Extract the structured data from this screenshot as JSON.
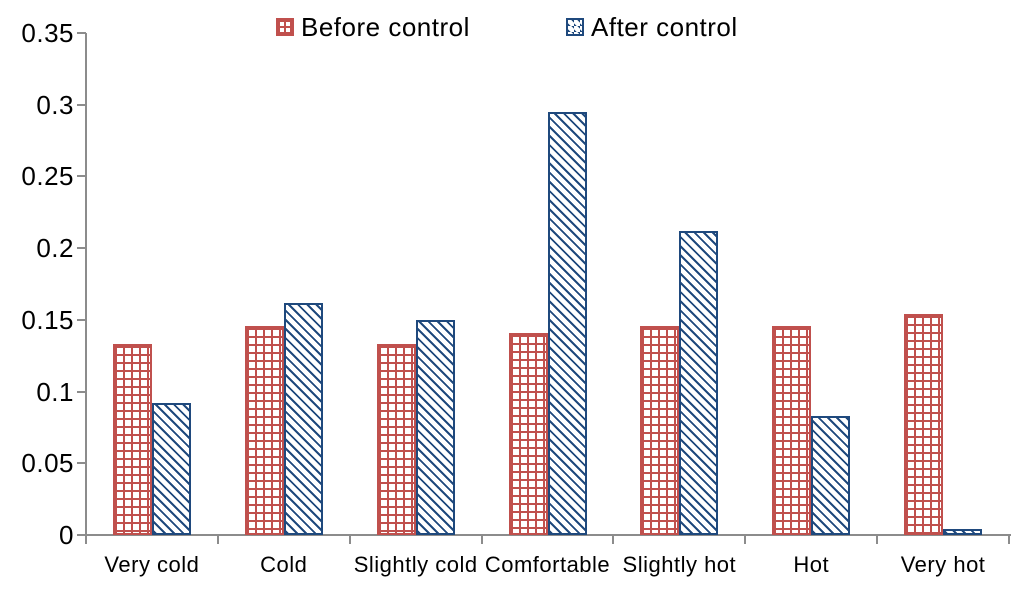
{
  "chart_data": {
    "type": "bar",
    "title": "",
    "xlabel": "",
    "ylabel": "",
    "categories": [
      "Very cold",
      "Cold",
      "Slightly cold",
      "Comfortable",
      "Slightly hot",
      "Hot",
      "Very hot"
    ],
    "series": [
      {
        "name": "Before control",
        "color": "#c0504d",
        "pattern": "grid-crosshatch",
        "values": [
          0.133,
          0.146,
          0.133,
          0.141,
          0.146,
          0.146,
          0.154
        ]
      },
      {
        "name": "After control",
        "color": "#1f497d",
        "pattern": "diagonal-hatch",
        "values": [
          0.092,
          0.162,
          0.15,
          0.295,
          0.212,
          0.083,
          0.004
        ]
      }
    ],
    "ylim": [
      0,
      0.35
    ],
    "ytick_step": 0.05,
    "ytick_labels": [
      "0",
      "0.05",
      "0.1",
      "0.15",
      "0.2",
      "0.25",
      "0.3",
      "0.35"
    ],
    "grid": false,
    "legend_position": "top-center",
    "axis_color": "#8c8c8c",
    "text_color": "#000000",
    "bar_fill_background": "#ffffff"
  },
  "legend": {
    "items": [
      {
        "label": "Before control"
      },
      {
        "label": "After control"
      }
    ]
  }
}
